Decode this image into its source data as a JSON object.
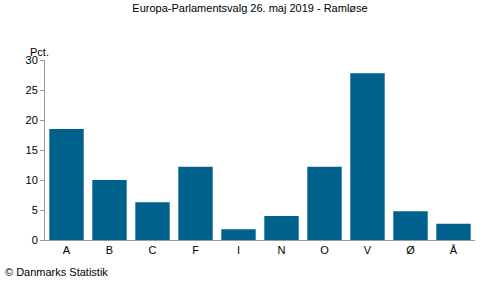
{
  "chart_data": {
    "type": "bar",
    "title": "Europa-Parlamentsvalg 26. maj 2019 - Ramløse",
    "ylabel": "Pct.",
    "annotations": [
      "© Danmarks Statistik"
    ],
    "categories": [
      "A",
      "B",
      "C",
      "F",
      "I",
      "N",
      "O",
      "V",
      "Ø",
      "Å"
    ],
    "values": [
      18.5,
      10.0,
      6.3,
      12.2,
      1.8,
      4.0,
      12.2,
      27.8,
      4.8,
      2.7
    ],
    "color": "#00618c",
    "ylim": [
      0,
      30
    ],
    "yticks": [
      0,
      5,
      10,
      15,
      20,
      25,
      30
    ],
    "grid": false
  }
}
